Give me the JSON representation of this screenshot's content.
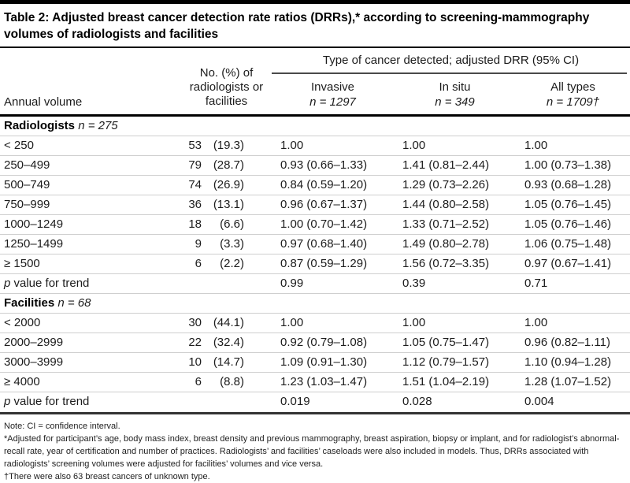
{
  "title": "Table 2: Adjusted breast cancer detection rate ratios (DRRs),* according to screening-mammography volumes of radiologists and facilities",
  "header": {
    "annual_volume": "Annual volume",
    "no_pct": "No. (%) of radiologists or facilities",
    "spanner": "Type of cancer detected; adjusted DRR (95% CI)",
    "subcols": [
      {
        "label": "Invasive",
        "n": "n = 1297"
      },
      {
        "label": "In situ",
        "n": "n = 349"
      },
      {
        "label": "All types",
        "n": "n = 1709†"
      }
    ]
  },
  "rows": [
    {
      "type": "section",
      "label": "Radiologists",
      "n": "n = 275"
    },
    {
      "type": "data",
      "volume": "< 250",
      "count": "53",
      "pct": "(19.3)",
      "invasive": "1.00",
      "insitu": "1.00",
      "all_types": "1.00"
    },
    {
      "type": "data",
      "volume": "250–499",
      "count": "79",
      "pct": "(28.7)",
      "invasive": "0.93 (0.66–1.33)",
      "insitu": "1.41 (0.81–2.44)",
      "all_types": "1.00 (0.73–1.38)"
    },
    {
      "type": "data",
      "volume": "500–749",
      "count": "74",
      "pct": "(26.9)",
      "invasive": "0.84 (0.59–1.20)",
      "insitu": "1.29 (0.73–2.26)",
      "all_types": "0.93 (0.68–1.28)"
    },
    {
      "type": "data",
      "volume": "750–999",
      "count": "36",
      "pct": "(13.1)",
      "invasive": "0.96 (0.67–1.37)",
      "insitu": "1.44 (0.80–2.58)",
      "all_types": "1.05 (0.76–1.45)"
    },
    {
      "type": "data",
      "volume": "1000–1249",
      "count": "18",
      "pct": "(6.6)",
      "invasive": "1.00 (0.70–1.42)",
      "insitu": "1.33 (0.71–2.52)",
      "all_types": "1.05 (0.76–1.46)"
    },
    {
      "type": "data",
      "volume": "1250–1499",
      "count": "9",
      "pct": "(3.3)",
      "invasive": "0.97 (0.68–1.40)",
      "insitu": "1.49 (0.80–2.78)",
      "all_types": "1.06 (0.75–1.48)"
    },
    {
      "type": "data",
      "volume": "≥ 1500",
      "count": "6",
      "pct": "(2.2)",
      "invasive": "0.87 (0.59–1.29)",
      "insitu": "1.56 (0.72–3.35)",
      "all_types": "0.97 (0.67–1.41)"
    },
    {
      "type": "p",
      "p": "p",
      "rest": " value for trend",
      "invasive": "0.99",
      "insitu": "0.39",
      "all_types": "0.71"
    },
    {
      "type": "section",
      "label": "Facilities",
      "n": "n = 68"
    },
    {
      "type": "data",
      "volume": "< 2000",
      "count": "30",
      "pct": "(44.1)",
      "invasive": "1.00",
      "insitu": "1.00",
      "all_types": "1.00"
    },
    {
      "type": "data",
      "volume": "2000–2999",
      "count": "22",
      "pct": "(32.4)",
      "invasive": "0.92 (0.79–1.08)",
      "insitu": "1.05 (0.75–1.47)",
      "all_types": "0.96 (0.82–1.11)"
    },
    {
      "type": "data",
      "volume": "3000–3999",
      "count": "10",
      "pct": "(14.7)",
      "invasive": "1.09 (0.91–1.30)",
      "insitu": "1.12 (0.79–1.57)",
      "all_types": "1.10 (0.94–1.28)"
    },
    {
      "type": "data",
      "volume": "≥ 4000",
      "count": "6",
      "pct": "(8.8)",
      "invasive": "1.23 (1.03–1.47)",
      "insitu": "1.51 (1.04–2.19)",
      "all_types": "1.28 (1.07–1.52)"
    },
    {
      "type": "p",
      "p": "p",
      "rest": " value for trend",
      "invasive": "0.019",
      "insitu": "0.028",
      "all_types": "0.004"
    }
  ],
  "footnotes": [
    "Note: CI = confidence interval.",
    "*Adjusted for participant’s age, body mass index, breast density and previous mammography, breast aspiration, biopsy or implant, and for radiologist’s abnormal-recall rate, year of certification and number of practices. Radiologists’ and facilities’ caseloads were also included in models. Thus, DRRs associated with radiologists’ screening volumes were adjusted for facilities’ volumes and vice versa.",
    "†There were also 63 breast cancers of unknown type."
  ]
}
